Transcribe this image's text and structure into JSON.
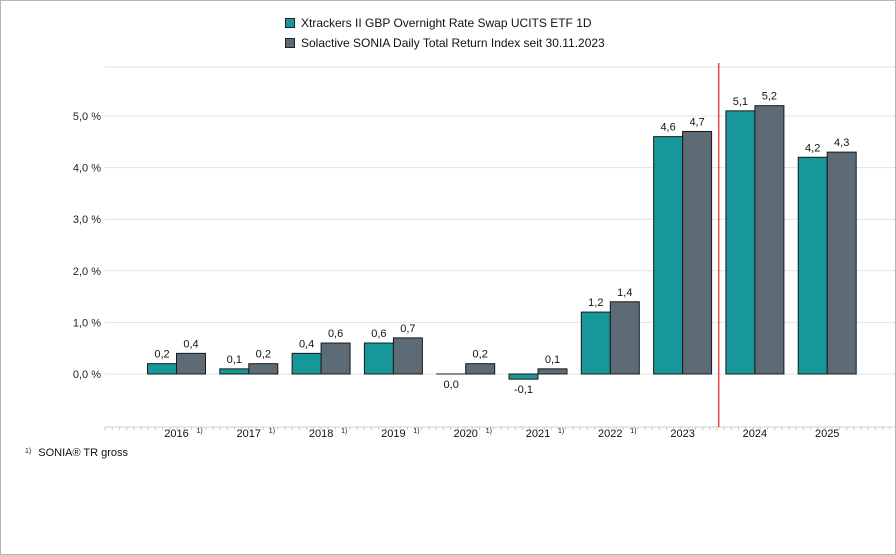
{
  "chart_data": {
    "type": "bar",
    "categories": [
      "2016",
      "2017",
      "2018",
      "2019",
      "2020",
      "2021",
      "2022",
      "2023",
      "2024",
      "2025"
    ],
    "category_footnotes": [
      "1)",
      "1)",
      "1)",
      "1)",
      "1)",
      "1)",
      "1)",
      "",
      "",
      ""
    ],
    "series": [
      {
        "name": "Xtrackers II GBP Overnight Rate Swap UCITS ETF 1D",
        "color": "#17979a",
        "values": [
          0.2,
          0.1,
          0.4,
          0.6,
          0.0,
          -0.1,
          1.2,
          4.6,
          5.1,
          4.2
        ],
        "labels": [
          "0,2",
          "0,1",
          "0,4",
          "0,6",
          "0,0",
          "-0,1",
          "1,2",
          "4,6",
          "5,1",
          "4,2"
        ]
      },
      {
        "name": "Solactive SONIA Daily Total Return Index seit 30.11.2023",
        "color": "#5c6b75",
        "values": [
          0.4,
          0.2,
          0.6,
          0.7,
          0.2,
          0.1,
          1.4,
          4.7,
          5.2,
          4.3
        ],
        "labels": [
          "0,4",
          "0,2",
          "0,6",
          "0,7",
          "0,2",
          "0,1",
          "1,4",
          "4,7",
          "5,2",
          "4,3"
        ]
      }
    ],
    "yticks": [
      0,
      1,
      2,
      3,
      4,
      5
    ],
    "ytick_labels": [
      "0,0 %",
      "1,0 %",
      "2,0 %",
      "3,0 %",
      "4,0 %",
      "5,0 %"
    ],
    "ylim": [
      -1.0,
      6.0
    ],
    "grid": true,
    "legend_position": "top-center",
    "marker_line": {
      "between": [
        "2023",
        "2024"
      ],
      "color": "#e02020"
    }
  },
  "footnote": {
    "marker": "1)",
    "text": "SONIA® TR gross"
  }
}
